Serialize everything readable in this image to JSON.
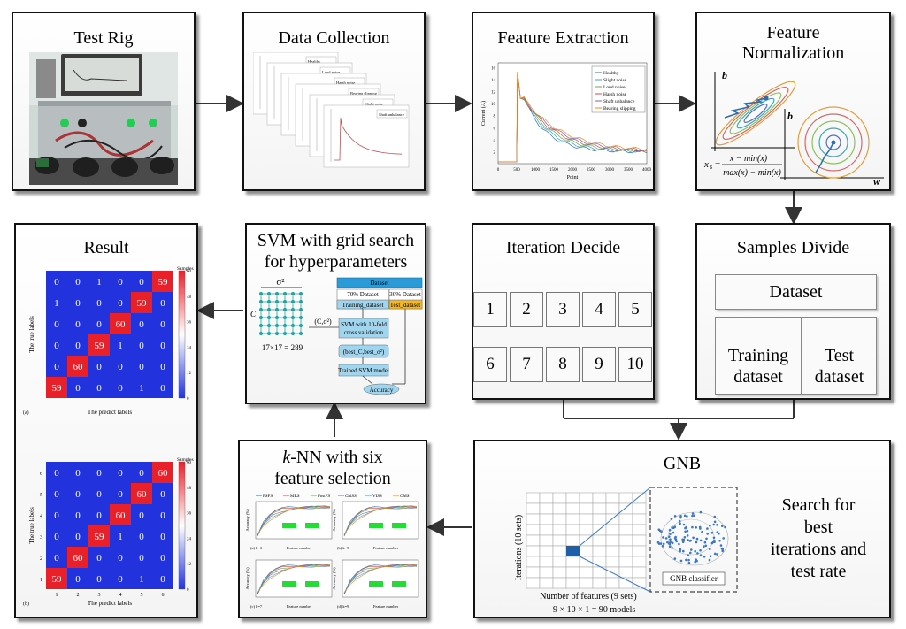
{
  "panels": {
    "test_rig": {
      "title": "Test Rig"
    },
    "data_collection": {
      "title": "Data Collection"
    },
    "feature_extraction": {
      "title": "Feature Extraction"
    },
    "feature_normalization": {
      "title_line1": "Feature",
      "title_line2": "Normalization"
    },
    "samples_divide": {
      "title": "Samples Divide",
      "dataset": "Dataset",
      "training_line1": "Training",
      "training_line2": "dataset",
      "test_line1": "Test",
      "test_line2": "dataset"
    },
    "iteration_decide": {
      "title": "Iteration Decide",
      "numbers": [
        "1",
        "2",
        "3",
        "4",
        "5",
        "6",
        "7",
        "8",
        "9",
        "10"
      ]
    },
    "svm": {
      "title_line1": "SVM with grid search",
      "title_line2": "for hyperparameters"
    },
    "result": {
      "title": "Result"
    },
    "knn": {
      "title_line1_italic": "k",
      "title_line1_rest": "-NN with six",
      "title_line2": "feature  selection"
    },
    "gnb": {
      "title": "GNB",
      "search_line1": "Search for",
      "search_line2": "best",
      "search_line3": "iterations and",
      "search_line4": "test rate",
      "classifier_label": "GNB classifier",
      "y_label": "Iterations (10 sets)",
      "x_label": "Number of features (9 sets)",
      "models": "9  ×  10           ×        1  =  90   models"
    }
  },
  "data_collection_legends": [
    "Healthy",
    "Loud noise",
    "Harsh noise",
    "Bearing slipping",
    "Slight noise",
    "Shaft unbalance"
  ],
  "feature_extraction_chart": {
    "ylabel": "Current (A)",
    "xlabel": "Point",
    "xticks": [
      "0",
      "500",
      "1000",
      "1500",
      "2000",
      "2500",
      "3000",
      "3500",
      "4000"
    ],
    "yticks": [
      "2",
      "4",
      "6",
      "8",
      "10",
      "12",
      "14",
      "16"
    ],
    "legend": [
      "Healthy",
      "Slight noise",
      "Loud noise",
      "Harsh noise",
      "Shaft unbalance",
      "Bearing slipping"
    ],
    "colors": [
      "#2b6cb0",
      "#3aa0c8",
      "#6aa84f",
      "#c0504d",
      "#8064a2",
      "#f08a24"
    ]
  },
  "normalization": {
    "axis_b": "b",
    "axis_w": "w",
    "formula_lhs": "x",
    "formula_num": "x − min(x)",
    "formula_den": "max(x) − min(x)"
  },
  "svm_flow": {
    "sigma": "σ²",
    "c_label": "C",
    "grid_eq": "17×17 = 289",
    "pair": "(C,σ²)",
    "dataset": "Dataset",
    "train_pct": "70% Dataset",
    "test_pct": "30% Dataset",
    "train_name": "Training_dataset",
    "test_name": "Test_dataset",
    "svm_cv_1": "SVM with 10-fold",
    "svm_cv_2": "cross validation",
    "best": "(best_C,best_σ²)",
    "trained": "Trained SVM model",
    "accuracy": "Accuracy"
  },
  "confusion_a": {
    "matrix": [
      [
        0,
        0,
        1,
        0,
        0,
        59
      ],
      [
        1,
        0,
        0,
        0,
        59,
        0
      ],
      [
        0,
        0,
        0,
        60,
        0,
        0
      ],
      [
        0,
        0,
        59,
        1,
        0,
        0
      ],
      [
        0,
        60,
        0,
        0,
        0,
        0
      ],
      [
        59,
        0,
        0,
        0,
        1,
        0
      ]
    ],
    "ylabel": "The true labels",
    "xlabel": "The predict labels",
    "tag": "(a)",
    "cb_title": "Samples",
    "cb_ticks": [
      "60",
      "48",
      "36",
      "24",
      "12",
      "0"
    ]
  },
  "confusion_b": {
    "matrix": [
      [
        0,
        0,
        0,
        0,
        0,
        60
      ],
      [
        0,
        0,
        0,
        0,
        60,
        0
      ],
      [
        0,
        0,
        0,
        60,
        0,
        0
      ],
      [
        0,
        0,
        59,
        1,
        0,
        0
      ],
      [
        0,
        60,
        0,
        0,
        0,
        0
      ],
      [
        59,
        0,
        0,
        0,
        1,
        0
      ]
    ],
    "row_labels": [
      "6",
      "5",
      "4",
      "3",
      "2",
      "1"
    ],
    "col_labels": [
      "1",
      "2",
      "3",
      "4",
      "5",
      "6"
    ],
    "ylabel": "The true labels",
    "xlabel": "The predict labels",
    "tag": "(b)",
    "cb_title": "Samples",
    "cb_ticks": [
      "60",
      "48",
      "36",
      "24",
      "12",
      "0"
    ]
  },
  "knn_charts": {
    "legend": [
      "FSFS",
      "MRS",
      "FostFS",
      "ChiSS",
      "VISS",
      "CMS"
    ],
    "legend_colors": [
      "#2b6cb0",
      "#c0504d",
      "#6aa84f",
      "#8064a2",
      "#3aa0c8",
      "#f08a24"
    ],
    "ylabel": "Accuracy (%)",
    "xlabel": "Feature number",
    "tags": [
      "(a) k=3",
      "(b) k=5",
      "(c) k=7",
      "(d) k=9"
    ]
  },
  "colors": {
    "matrix_red": "#e8202a",
    "matrix_blue": "#2233dd",
    "svm_box": "#9fd5ef",
    "svm_header": "#2a9bd6",
    "svm_test": "#f5b720",
    "grid_node": "#1aa7a0"
  }
}
